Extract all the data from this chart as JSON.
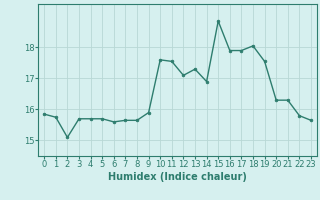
{
  "x": [
    0,
    1,
    2,
    3,
    4,
    5,
    6,
    7,
    8,
    9,
    10,
    11,
    12,
    13,
    14,
    15,
    16,
    17,
    18,
    19,
    20,
    21,
    22,
    23
  ],
  "y": [
    15.85,
    15.75,
    15.1,
    15.7,
    15.7,
    15.7,
    15.6,
    15.65,
    15.65,
    15.9,
    17.6,
    17.55,
    17.1,
    17.3,
    16.9,
    18.85,
    17.9,
    17.9,
    18.05,
    17.55,
    16.3,
    16.3,
    15.8,
    15.65
  ],
  "line_color": "#2e7d6e",
  "marker": "o",
  "marker_size": 2.0,
  "line_width": 1.0,
  "bg_color": "#d6f0ef",
  "grid_color": "#b8d8d5",
  "xlabel": "Humidex (Indice chaleur)",
  "xlabel_fontsize": 7,
  "tick_fontsize": 6,
  "yticks": [
    15,
    16,
    17,
    18
  ],
  "ylim": [
    14.5,
    19.4
  ],
  "xlim": [
    -0.5,
    23.5
  ],
  "axis_color": "#2e7d6e"
}
